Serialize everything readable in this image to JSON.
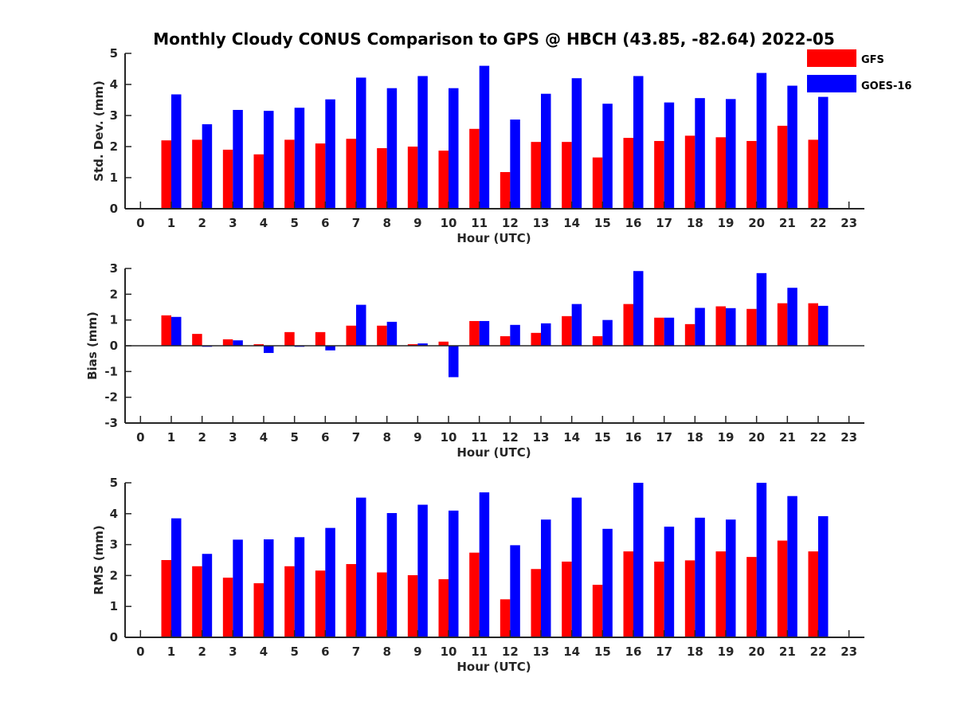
{
  "title": "Monthly Cloudy CONUS Comparison to GPS @ HBCH (43.85, -82.64) 2022-05",
  "legend": [
    {
      "name": "GFS",
      "color": "#ff0000"
    },
    {
      "name": "GOES-16",
      "color": "#0000ff"
    }
  ],
  "chart_data": [
    {
      "type": "bar",
      "ylabel": "Std. Dev. (mm)",
      "xlabel": "Hour (UTC)",
      "xlim": [
        -0.5,
        23.5
      ],
      "ylim": [
        0,
        5
      ],
      "x_ticks": [
        0,
        1,
        2,
        3,
        4,
        5,
        6,
        7,
        8,
        9,
        10,
        11,
        12,
        13,
        14,
        15,
        16,
        17,
        18,
        19,
        20,
        21,
        22,
        23
      ],
      "y_ticks": [
        0,
        1,
        2,
        3,
        4,
        5
      ],
      "categories": [
        1,
        2,
        3,
        4,
        5,
        6,
        7,
        8,
        9,
        10,
        11,
        12,
        13,
        14,
        15,
        16,
        17,
        18,
        19,
        20,
        21,
        22
      ],
      "series": [
        {
          "name": "GFS",
          "color": "#ff0000",
          "values": [
            2.2,
            2.22,
            1.9,
            1.75,
            2.22,
            2.1,
            2.25,
            1.95,
            2.0,
            1.87,
            2.57,
            1.18,
            2.15,
            2.15,
            1.65,
            2.28,
            2.18,
            2.35,
            2.3,
            2.18,
            2.67,
            2.22
          ]
        },
        {
          "name": "GOES-16",
          "color": "#0000ff",
          "values": [
            3.68,
            2.72,
            3.18,
            3.15,
            3.25,
            3.52,
            4.22,
            3.88,
            4.27,
            3.88,
            4.6,
            2.87,
            3.7,
            4.2,
            3.38,
            4.27,
            3.42,
            3.56,
            3.53,
            4.37,
            3.96,
            3.6
          ]
        }
      ]
    },
    {
      "type": "bar",
      "ylabel": "Bias (mm)",
      "xlabel": "Hour (UTC)",
      "xlim": [
        -0.5,
        23.5
      ],
      "ylim": [
        -3,
        3
      ],
      "x_ticks": [
        0,
        1,
        2,
        3,
        4,
        5,
        6,
        7,
        8,
        9,
        10,
        11,
        12,
        13,
        14,
        15,
        16,
        17,
        18,
        19,
        20,
        21,
        22,
        23
      ],
      "y_ticks": [
        -3,
        -2,
        -1,
        0,
        1,
        2,
        3
      ],
      "categories": [
        1,
        2,
        3,
        4,
        5,
        6,
        7,
        8,
        9,
        10,
        11,
        12,
        13,
        14,
        15,
        16,
        17,
        18,
        19,
        20,
        21,
        22
      ],
      "series": [
        {
          "name": "GFS",
          "color": "#ff0000",
          "values": [
            1.18,
            0.46,
            0.25,
            0.06,
            0.53,
            0.53,
            0.78,
            0.78,
            0.06,
            0.16,
            0.96,
            0.37,
            0.5,
            1.15,
            0.37,
            1.62,
            1.09,
            0.84,
            1.53,
            1.43,
            1.65,
            1.65
          ]
        },
        {
          "name": "GOES-16",
          "color": "#0000ff",
          "values": [
            1.12,
            -0.04,
            0.21,
            -0.28,
            -0.04,
            -0.18,
            1.59,
            0.93,
            0.09,
            -1.22,
            0.96,
            0.81,
            0.87,
            1.62,
            1.0,
            2.9,
            1.09,
            1.47,
            1.46,
            2.82,
            2.25,
            1.55
          ]
        }
      ]
    },
    {
      "type": "bar",
      "ylabel": "RMS (mm)",
      "xlabel": "Hour (UTC)",
      "xlim": [
        -0.5,
        23.5
      ],
      "ylim": [
        0,
        5
      ],
      "x_ticks": [
        0,
        1,
        2,
        3,
        4,
        5,
        6,
        7,
        8,
        9,
        10,
        11,
        12,
        13,
        14,
        15,
        16,
        17,
        18,
        19,
        20,
        21,
        22,
        23
      ],
      "y_ticks": [
        0,
        1,
        2,
        3,
        4,
        5
      ],
      "categories": [
        1,
        2,
        3,
        4,
        5,
        6,
        7,
        8,
        9,
        10,
        11,
        12,
        13,
        14,
        15,
        16,
        17,
        18,
        19,
        20,
        21,
        22
      ],
      "series": [
        {
          "name": "GFS",
          "color": "#ff0000",
          "values": [
            2.5,
            2.3,
            1.93,
            1.75,
            2.3,
            2.16,
            2.37,
            2.1,
            2.01,
            1.88,
            2.74,
            1.23,
            2.21,
            2.45,
            1.7,
            2.78,
            2.45,
            2.49,
            2.78,
            2.6,
            3.13,
            2.78
          ]
        },
        {
          "name": "GOES-16",
          "color": "#0000ff",
          "values": [
            3.85,
            2.7,
            3.16,
            3.17,
            3.24,
            3.54,
            4.52,
            4.02,
            4.29,
            4.1,
            4.69,
            2.98,
            3.81,
            4.52,
            3.51,
            5.0,
            3.58,
            3.87,
            3.81,
            5.0,
            4.57,
            3.92
          ]
        }
      ]
    }
  ]
}
